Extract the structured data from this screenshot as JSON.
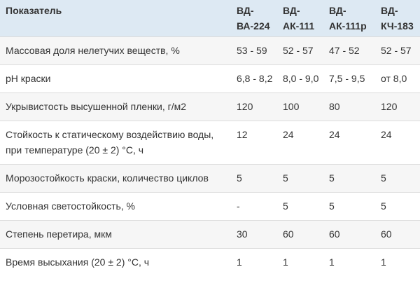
{
  "table": {
    "header": [
      "Показатель",
      "ВД-ВА-224",
      "ВД-АК-111",
      "ВД-АК-111р",
      "ВД-КЧ-183"
    ],
    "rows": [
      [
        "Массовая доля нелетучих веществ, %",
        "53 - 59",
        "52 - 57",
        "47 - 52",
        "52 - 57"
      ],
      [
        "pH краски",
        "6,8 - 8,2",
        "8,0 - 9,0",
        "7,5 - 9,5",
        "от 8,0"
      ],
      [
        "Укрывистость высушенной пленки, г/м2",
        "120",
        "100",
        "80",
        "120"
      ],
      [
        "Стойкость к статическому воздействию воды, при температуре (20 ± 2) °С, ч",
        "12",
        "24",
        "24",
        "24"
      ],
      [
        "Морозостойкость краски, количество циклов",
        "5",
        "5",
        "5",
        "5"
      ],
      [
        "Условная светостойкость, %",
        "-",
        "5",
        "5",
        "5"
      ],
      [
        "Степень перетира, мкм",
        "30",
        "60",
        "60",
        "60"
      ],
      [
        "Время высыхания (20 ± 2) °С, ч",
        "1",
        "1",
        "1",
        "1"
      ]
    ]
  }
}
